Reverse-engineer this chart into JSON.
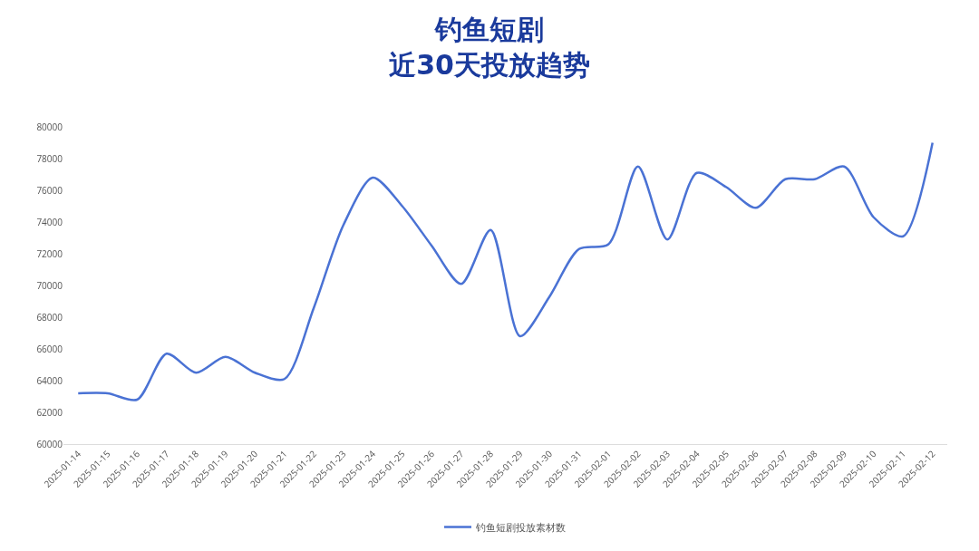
{
  "chart_data": {
    "type": "line",
    "title": "钓鱼短剧",
    "subtitle": "近30天投放趋势",
    "categories": [
      "2025-01-14",
      "2025-01-15",
      "2025-01-16",
      "2025-01-17",
      "2025-01-18",
      "2025-01-19",
      "2025-01-20",
      "2025-01-21",
      "2025-01-22",
      "2025-01-23",
      "2025-01-24",
      "2025-01-25",
      "2025-01-26",
      "2025-01-27",
      "2025-01-28",
      "2025-01-29",
      "2025-01-30",
      "2025-01-31",
      "2025-02-01",
      "2025-02-02",
      "2025-02-03",
      "2025-02-04",
      "2025-02-05",
      "2025-02-06",
      "2025-02-07",
      "2025-02-08",
      "2025-02-09",
      "2025-02-10",
      "2025-02-11",
      "2025-02-12"
    ],
    "series": [
      {
        "name": "钓鱼短剧投放素材数",
        "color": "#4a72d4",
        "values": [
          63200,
          63200,
          62800,
          65700,
          64500,
          65500,
          64500,
          64100,
          68600,
          73800,
          76800,
          75000,
          72500,
          70100,
          73500,
          66800,
          69300,
          72300,
          72600,
          77500,
          72900,
          77100,
          76200,
          74900,
          76700,
          76700,
          77500,
          74300,
          73100,
          79000
        ]
      }
    ],
    "ylim": [
      60000,
      80000
    ],
    "yticks": [
      60000,
      62000,
      64000,
      66000,
      68000,
      70000,
      72000,
      74000,
      76000,
      78000,
      80000
    ],
    "grid": false,
    "legend": "bottom",
    "marker": "none",
    "line_style": "solid"
  }
}
